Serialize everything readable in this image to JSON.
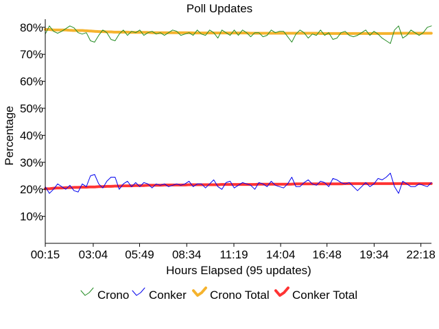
{
  "chart_data": {
    "type": "line",
    "title": "Poll Updates",
    "xlabel": "Hours Elapsed (95 updates)",
    "ylabel": "Percentage",
    "ylim": [
      0,
      83
    ],
    "y_ticks": [
      10,
      20,
      30,
      40,
      50,
      60,
      70,
      80
    ],
    "y_tick_labels": [
      "10%",
      "20%",
      "30%",
      "40%",
      "50%",
      "60%",
      "70%",
      "80%"
    ],
    "x_range": [
      0,
      95
    ],
    "x_ticks": [
      0,
      11.8,
      23.2,
      34.8,
      46.4,
      57.9,
      69.3,
      80.9,
      92.4
    ],
    "x_tick_labels": [
      "00:15",
      "03:04",
      "05:49",
      "08:34",
      "11:19",
      "14:04",
      "16:48",
      "19:34",
      "22:18"
    ],
    "grid": false,
    "legend_position": "bottom",
    "series": [
      {
        "name": "Crono",
        "color": "#228b22",
        "style": "thin",
        "values": [
          77.5,
          80.5,
          78.5,
          77.8,
          78.5,
          79.5,
          80.5,
          79.8,
          78.0,
          77.5,
          78.0,
          75.0,
          74.5,
          77.0,
          79.0,
          78.0,
          75.5,
          75.0,
          77.5,
          79.0,
          77.0,
          78.5,
          78.0,
          79.0,
          77.0,
          78.0,
          78.5,
          77.5,
          78.0,
          77.0,
          78.0,
          79.0,
          78.5,
          77.0,
          77.5,
          78.0,
          77.0,
          79.0,
          77.5,
          77.0,
          79.0,
          78.0,
          76.0,
          79.0,
          78.0,
          77.0,
          79.0,
          77.0,
          79.0,
          78.0,
          76.5,
          78.0,
          78.0,
          76.5,
          77.0,
          79.0,
          78.0,
          78.5,
          78.5,
          76.5,
          74.5,
          77.5,
          79.0,
          78.0,
          76.0,
          77.5,
          77.0,
          79.0,
          77.0,
          78.0,
          75.5,
          76.0,
          78.0,
          78.5,
          77.0,
          76.5,
          77.0,
          78.0,
          79.0,
          77.0,
          78.5,
          77.5,
          76.0,
          75.0,
          74.0,
          79.0,
          80.5,
          76.0,
          77.0,
          79.0,
          78.0,
          77.0,
          78.0,
          80.0,
          80.5
        ]
      },
      {
        "name": "Conker",
        "color": "#0000ee",
        "style": "thin",
        "values": [
          21.0,
          18.5,
          20.0,
          22.0,
          21.0,
          20.0,
          21.5,
          19.5,
          19.0,
          22.0,
          21.0,
          25.0,
          25.5,
          22.0,
          20.5,
          23.0,
          24.5,
          24.5,
          20.0,
          22.0,
          23.0,
          21.0,
          22.5,
          21.0,
          22.5,
          22.0,
          20.5,
          22.0,
          21.5,
          22.0,
          21.0,
          21.5,
          22.0,
          21.5,
          22.0,
          23.0,
          21.0,
          22.0,
          22.0,
          20.5,
          22.0,
          23.5,
          21.0,
          20.0,
          22.5,
          23.0,
          20.5,
          21.5,
          22.5,
          22.0,
          21.5,
          20.0,
          22.5,
          22.0,
          21.0,
          23.0,
          21.5,
          21.0,
          20.5,
          22.0,
          24.5,
          21.0,
          21.0,
          22.5,
          23.5,
          22.0,
          21.5,
          23.0,
          22.5,
          21.0,
          24.0,
          23.5,
          22.5,
          22.0,
          22.5,
          21.0,
          19.5,
          21.0,
          22.5,
          21.0,
          22.0,
          24.0,
          23.5,
          24.5,
          26.0,
          21.0,
          18.5,
          23.0,
          22.0,
          21.0,
          21.0,
          22.0,
          21.5,
          21.0,
          22.5
        ]
      },
      {
        "name": "Crono Total",
        "color": "#f5b32d",
        "style": "thick",
        "values": [
          79.2,
          79.2,
          79.0,
          79.0,
          79.0,
          79.0,
          78.9,
          78.8,
          78.8,
          78.8,
          78.7,
          78.6,
          78.5,
          78.4,
          78.4,
          78.3,
          78.3,
          78.2,
          78.2,
          78.2,
          78.2,
          78.1,
          78.1,
          78.1,
          78.1,
          78.1,
          78.0,
          78.0,
          78.0,
          78.0,
          78.0,
          78.0,
          78.0,
          78.0,
          78.0,
          78.0,
          77.9,
          77.9,
          77.9,
          77.9,
          77.9,
          77.9,
          77.9,
          77.9,
          77.9,
          77.9,
          77.9,
          77.9,
          77.9,
          77.9,
          77.8,
          77.8,
          77.8,
          77.8,
          77.8,
          77.8,
          77.8,
          77.8,
          77.8,
          77.8,
          77.8,
          77.8,
          77.8,
          77.8,
          77.8,
          77.8,
          77.8,
          77.7,
          77.7,
          77.7,
          77.7,
          77.7,
          77.7,
          77.7,
          77.7,
          77.7,
          77.7,
          77.7,
          77.7,
          77.7,
          77.7,
          77.7,
          77.7,
          77.7,
          77.7,
          77.8,
          77.8,
          77.8,
          77.8,
          77.8,
          77.8,
          77.8,
          77.8,
          77.8,
          77.8
        ]
      },
      {
        "name": "Conker Total",
        "color": "#ff3333",
        "style": "thick",
        "values": [
          20.2,
          20.2,
          20.4,
          20.5,
          20.5,
          20.6,
          20.6,
          20.7,
          20.7,
          20.8,
          20.8,
          20.9,
          20.9,
          21.0,
          21.0,
          21.1,
          21.1,
          21.2,
          21.2,
          21.3,
          21.3,
          21.3,
          21.4,
          21.4,
          21.4,
          21.5,
          21.5,
          21.5,
          21.5,
          21.6,
          21.6,
          21.6,
          21.6,
          21.6,
          21.6,
          21.7,
          21.7,
          21.7,
          21.7,
          21.7,
          21.7,
          21.7,
          21.7,
          21.8,
          21.8,
          21.8,
          21.8,
          21.8,
          21.8,
          21.8,
          21.8,
          21.8,
          21.9,
          21.9,
          21.9,
          21.9,
          21.9,
          21.9,
          21.9,
          21.9,
          21.9,
          22.0,
          22.0,
          22.0,
          22.0,
          22.0,
          22.0,
          22.0,
          22.0,
          22.0,
          22.0,
          22.0,
          22.0,
          22.1,
          22.1,
          22.1,
          22.1,
          22.1,
          22.1,
          22.1,
          22.1,
          22.1,
          22.1,
          22.1,
          22.1,
          22.1,
          22.1,
          22.1,
          22.1,
          22.1,
          22.1,
          22.1,
          22.1,
          22.1,
          22.1
        ]
      }
    ]
  }
}
